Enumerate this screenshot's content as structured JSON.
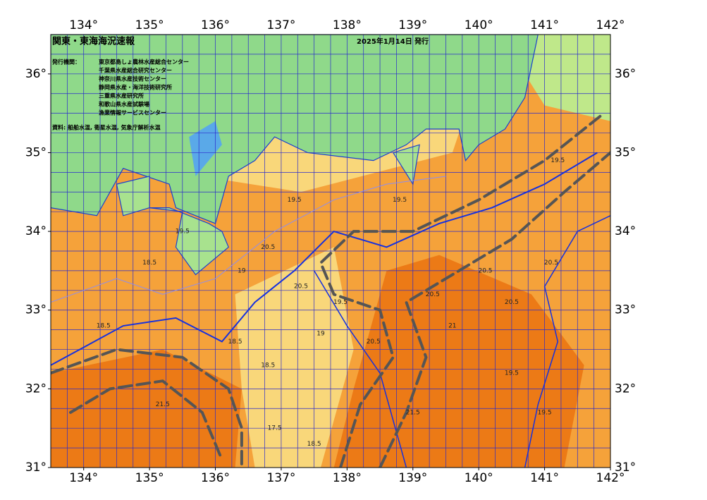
{
  "header": {
    "title": "関東・東海海況速報",
    "date": "2025年1月14日 発行"
  },
  "issuers": {
    "label": "発行機関：",
    "names": [
      "東京都島しょ農林水産総合センター",
      "千葉県水産総合研究センター",
      "神奈川県水産技術センター",
      "静岡県水産・海洋技術研究所",
      "三重県水産研究所",
      "和歌山県水産試験場",
      "漁業情報サービスセンター"
    ]
  },
  "source": "資料: 船舶水温, 衛星水温, 気象庁解析水温",
  "map": {
    "xlim": [
      133.5,
      142
    ],
    "ylim": [
      31,
      36.5
    ],
    "xticks": [
      {
        "value": 134,
        "label": "134°"
      },
      {
        "value": 135,
        "label": "135°"
      },
      {
        "value": 136,
        "label": "136°"
      },
      {
        "value": 137,
        "label": "137°"
      },
      {
        "value": 138,
        "label": "138°"
      },
      {
        "value": 139,
        "label": "139°"
      },
      {
        "value": 140,
        "label": "140°"
      },
      {
        "value": 141,
        "label": "141°"
      },
      {
        "value": 142,
        "label": "142°"
      }
    ],
    "yticks": [
      {
        "value": 31,
        "label": "31°"
      },
      {
        "value": 32,
        "label": "32°"
      },
      {
        "value": 33,
        "label": "33°"
      },
      {
        "value": 34,
        "label": "34°"
      },
      {
        "value": 35,
        "label": "35°"
      },
      {
        "value": 36,
        "label": "36°"
      }
    ],
    "contour_labels": [
      18.5,
      18.5,
      19.5,
      19,
      20.5,
      20.5,
      19.5,
      18.5,
      19,
      18.5,
      20.5,
      20.5,
      21,
      20.5,
      19.5,
      20.5,
      21.5,
      19.5,
      18.5,
      17.5,
      19.5,
      19.5,
      20.5,
      21.5,
      19.5
    ]
  }
}
